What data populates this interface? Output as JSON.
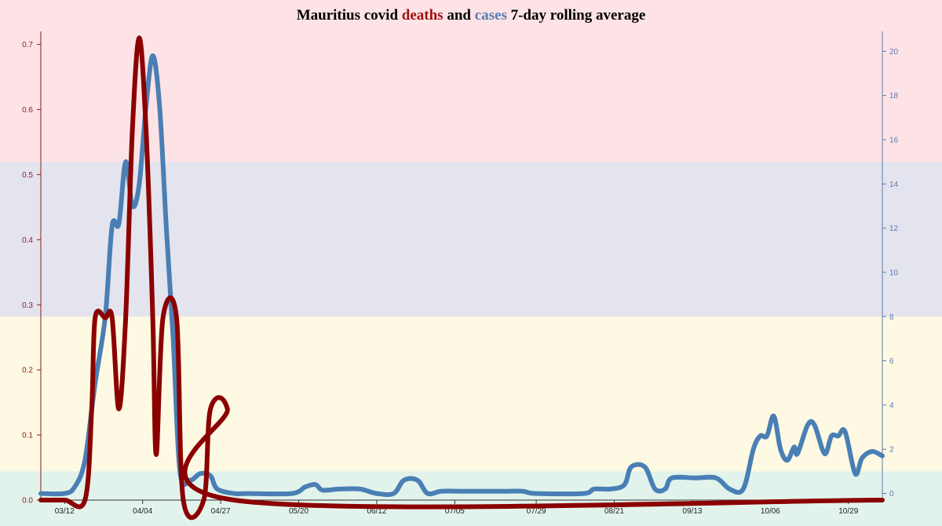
{
  "chart_data": {
    "type": "line",
    "title": {
      "prefix": "Mauritius covid",
      "deaths_word": "deaths",
      "joiner": "and",
      "cases_word": "cases",
      "suffix": "7-day rolling average"
    },
    "xlabel": "",
    "ylabel_left": "",
    "ylabel_right": "",
    "x_ticks": [
      "03/12",
      "04/04",
      "04/27",
      "05/20",
      "06/12",
      "07/05",
      "07/29",
      "08/21",
      "09/13",
      "10/06",
      "10/29"
    ],
    "x_range": [
      "2020-03-05",
      "2020-11-08"
    ],
    "y_left": {
      "range": [
        0,
        0.72
      ],
      "ticks": [
        0.0,
        0.1,
        0.2,
        0.3,
        0.4,
        0.5,
        0.6,
        0.7
      ],
      "color": "#8b1a1a"
    },
    "y_right": {
      "range": [
        -0.3,
        20.9
      ],
      "ticks": [
        0,
        2,
        4,
        6,
        8,
        10,
        12,
        14,
        16,
        18,
        20
      ],
      "color": "#5a7bb0"
    },
    "bands": [
      {
        "from": 15,
        "to": 20.9,
        "color": "#fde3e6"
      },
      {
        "from": 8,
        "to": 15,
        "color": "#e4e4ee"
      },
      {
        "from": 1,
        "to": 8,
        "color": "#fef9e2"
      },
      {
        "from": -0.3,
        "to": 1,
        "color": "#e2f3ec"
      }
    ],
    "series": [
      {
        "name": "deaths",
        "axis": "left",
        "color": "#8b0000",
        "points": [
          [
            "2020-03-05",
            0
          ],
          [
            "2020-03-12",
            0
          ],
          [
            "2020-03-18",
            0
          ],
          [
            "2020-03-20",
            0.14
          ],
          [
            "2020-03-21",
            0.28
          ],
          [
            "2020-03-24",
            0.28
          ],
          [
            "2020-03-26",
            0.28
          ],
          [
            "2020-03-28",
            0.14
          ],
          [
            "2020-03-30",
            0.28
          ],
          [
            "2020-04-01",
            0.57
          ],
          [
            "2020-04-03",
            0.71
          ],
          [
            "2020-04-05",
            0.57
          ],
          [
            "2020-04-07",
            0.28
          ],
          [
            "2020-04-08",
            0.07
          ],
          [
            "2020-04-10",
            0.28
          ],
          [
            "2020-04-14",
            0.28
          ],
          [
            "2020-04-16",
            0.0
          ],
          [
            "2020-04-22",
            0
          ],
          [
            "2020-04-24",
            0.14
          ],
          [
            "2020-04-29",
            0.14
          ],
          [
            "2020-05-01",
            0
          ],
          [
            "2020-11-08",
            0
          ]
        ]
      },
      {
        "name": "cases",
        "axis": "right",
        "color": "#4a7fb5",
        "points": [
          [
            "2020-03-05",
            0
          ],
          [
            "2020-03-12",
            0
          ],
          [
            "2020-03-15",
            0.3
          ],
          [
            "2020-03-18",
            1.5
          ],
          [
            "2020-03-21",
            5
          ],
          [
            "2020-03-24",
            8
          ],
          [
            "2020-03-26",
            12.1
          ],
          [
            "2020-03-28",
            12.2
          ],
          [
            "2020-03-30",
            15
          ],
          [
            "2020-04-01",
            13
          ],
          [
            "2020-04-03",
            14
          ],
          [
            "2020-04-05",
            17.5
          ],
          [
            "2020-04-07",
            19.8
          ],
          [
            "2020-04-09",
            17.5
          ],
          [
            "2020-04-11",
            12
          ],
          [
            "2020-04-13",
            7
          ],
          [
            "2020-04-15",
            1
          ],
          [
            "2020-04-18",
            0.6
          ],
          [
            "2020-04-21",
            0.9
          ],
          [
            "2020-04-24",
            0.8
          ],
          [
            "2020-04-26",
            0.2
          ],
          [
            "2020-05-01",
            0
          ],
          [
            "2020-05-05",
            0
          ],
          [
            "2020-05-18",
            0
          ],
          [
            "2020-05-22",
            0.3
          ],
          [
            "2020-05-25",
            0.4
          ],
          [
            "2020-05-27",
            0.15
          ],
          [
            "2020-06-01",
            0.2
          ],
          [
            "2020-06-07",
            0.2
          ],
          [
            "2020-06-12",
            0
          ],
          [
            "2020-06-17",
            0
          ],
          [
            "2020-06-20",
            0.6
          ],
          [
            "2020-06-24",
            0.6
          ],
          [
            "2020-06-27",
            0
          ],
          [
            "2020-07-01",
            0.1
          ],
          [
            "2020-07-07",
            0.1
          ],
          [
            "2020-07-10",
            0.1
          ],
          [
            "2020-07-15",
            0.1
          ],
          [
            "2020-07-20",
            0.1
          ],
          [
            "2020-07-25",
            0.1
          ],
          [
            "2020-07-29",
            0
          ],
          [
            "2020-08-12",
            0
          ],
          [
            "2020-08-15",
            0.2
          ],
          [
            "2020-08-20",
            0.2
          ],
          [
            "2020-08-24",
            0.4
          ],
          [
            "2020-08-26",
            1.2
          ],
          [
            "2020-08-30",
            1.2
          ],
          [
            "2020-09-02",
            0.2
          ],
          [
            "2020-09-05",
            0.2
          ],
          [
            "2020-09-07",
            0.7
          ],
          [
            "2020-09-14",
            0.7
          ],
          [
            "2020-09-20",
            0.7
          ],
          [
            "2020-09-24",
            0.2
          ],
          [
            "2020-09-28",
            0.2
          ],
          [
            "2020-10-01",
            2
          ],
          [
            "2020-10-03",
            2.6
          ],
          [
            "2020-10-05",
            2.6
          ],
          [
            "2020-10-07",
            3.5
          ],
          [
            "2020-10-09",
            2
          ],
          [
            "2020-10-11",
            1.5
          ],
          [
            "2020-10-13",
            2.1
          ],
          [
            "2020-10-14",
            1.8
          ],
          [
            "2020-10-17",
            3.1
          ],
          [
            "2020-10-19",
            3.1
          ],
          [
            "2020-10-22",
            1.8
          ],
          [
            "2020-10-24",
            2.6
          ],
          [
            "2020-10-26",
            2.6
          ],
          [
            "2020-10-28",
            2.8
          ],
          [
            "2020-10-31",
            0.9
          ],
          [
            "2020-11-02",
            1.6
          ],
          [
            "2020-11-05",
            1.9
          ],
          [
            "2020-11-08",
            1.7
          ]
        ]
      }
    ]
  }
}
